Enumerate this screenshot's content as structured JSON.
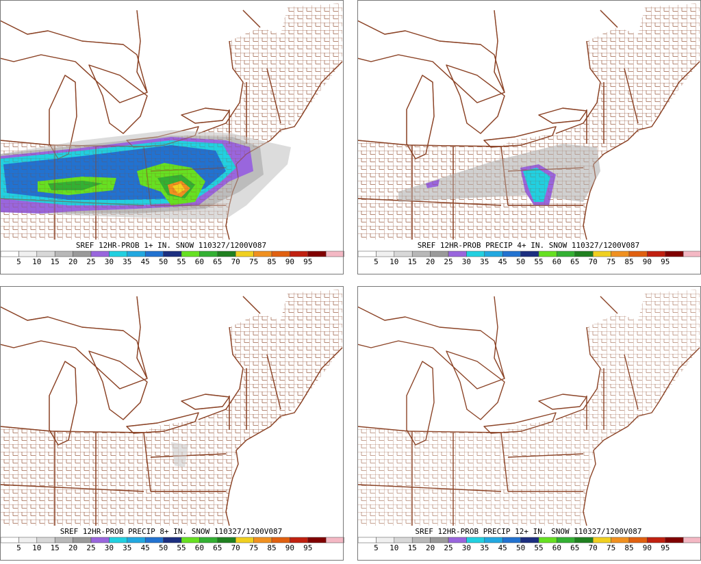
{
  "panels": [
    {
      "title": "SREF 12HR-PROB 1+ IN. SNOW 110327/1200V087"
    },
    {
      "title": "SREF 12HR-PROB PRECIP 4+ IN. SNOW 110327/1200V087"
    },
    {
      "title": "SREF 12HR-PROB PRECIP 8+ IN. SNOW 110327/1200V087"
    },
    {
      "title": "SREF 12HR-PROB PRECIP 12+ IN. SNOW 110327/1200V087"
    }
  ],
  "colorbar": {
    "labels": [
      5,
      10,
      15,
      20,
      25,
      30,
      35,
      45,
      50,
      55,
      60,
      65,
      70,
      75,
      85,
      90,
      95
    ],
    "colors": [
      "#ffffff",
      "#f0f0f0",
      "#d8d8d8",
      "#b8b8b8",
      "#9a9a9a",
      "#9966dd",
      "#22d0e0",
      "#22a8e0",
      "#2272d0",
      "#1c2f80",
      "#66e022",
      "#33b033",
      "#1f801f",
      "#f0d020",
      "#f09020",
      "#e06010",
      "#c02010",
      "#800000",
      "#f4b8c4"
    ]
  }
}
